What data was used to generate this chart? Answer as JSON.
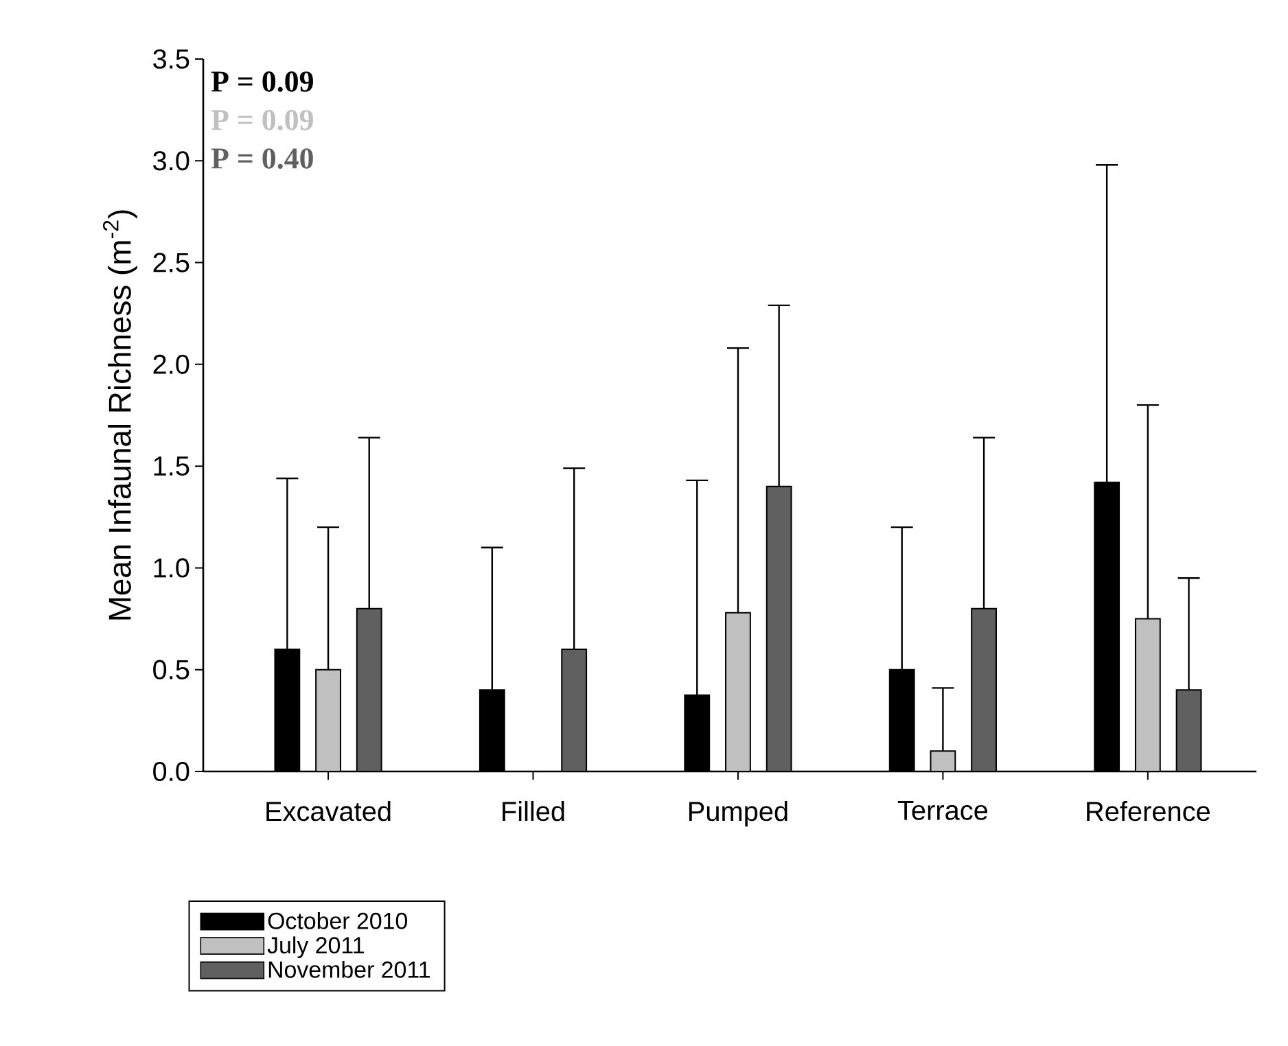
{
  "chart_data": {
    "type": "bar",
    "ylabel": "Mean Infaunal Richness (m$^{-2}$)",
    "categories": [
      "Excavated",
      "Filled",
      "Pumped",
      "Terrace",
      "Reference"
    ],
    "series": [
      {
        "name": "October 2010",
        "color": "#000000",
        "values": [
          0.6,
          0.4,
          0.375,
          0.5,
          1.42
        ],
        "errors": [
          [
            0.6,
            1.44
          ],
          [
            0.4,
            1.1
          ],
          [
            0.375,
            1.43
          ],
          [
            0.5,
            1.2
          ],
          [
            1.42,
            2.98
          ]
        ]
      },
      {
        "name": "July 2011",
        "color": "#c0c0c0",
        "values": [
          0.5,
          null,
          0.78,
          0.1,
          0.75
        ],
        "errors": [
          [
            0.5,
            1.2
          ],
          null,
          [
            0.78,
            2.08
          ],
          [
            0.1,
            0.41
          ],
          [
            0.75,
            1.8
          ]
        ]
      },
      {
        "name": "November 2011",
        "color": "#606060",
        "values": [
          0.8,
          0.6,
          1.4,
          0.8,
          0.4
        ],
        "errors": [
          [
            0.8,
            1.64
          ],
          [
            0.6,
            1.49
          ],
          [
            1.4,
            2.29
          ],
          [
            0.8,
            1.64
          ],
          [
            0.4,
            0.95
          ]
        ]
      }
    ],
    "ylim": [
      0,
      3.5
    ],
    "yticks": [
      {
        "value": 0,
        "label": "0.0"
      },
      0.5,
      {
        "value": 1,
        "label": "1.0"
      },
      1.5,
      {
        "value": 2,
        "label": "2.0"
      },
      2.5,
      {
        "value": 3,
        "label": "3.0"
      },
      3.5
    ],
    "annotations": [
      "P = 0.09",
      "P = 0.09",
      "P = 0.40"
    ],
    "legend": "bottom left",
    "grid": false
  }
}
